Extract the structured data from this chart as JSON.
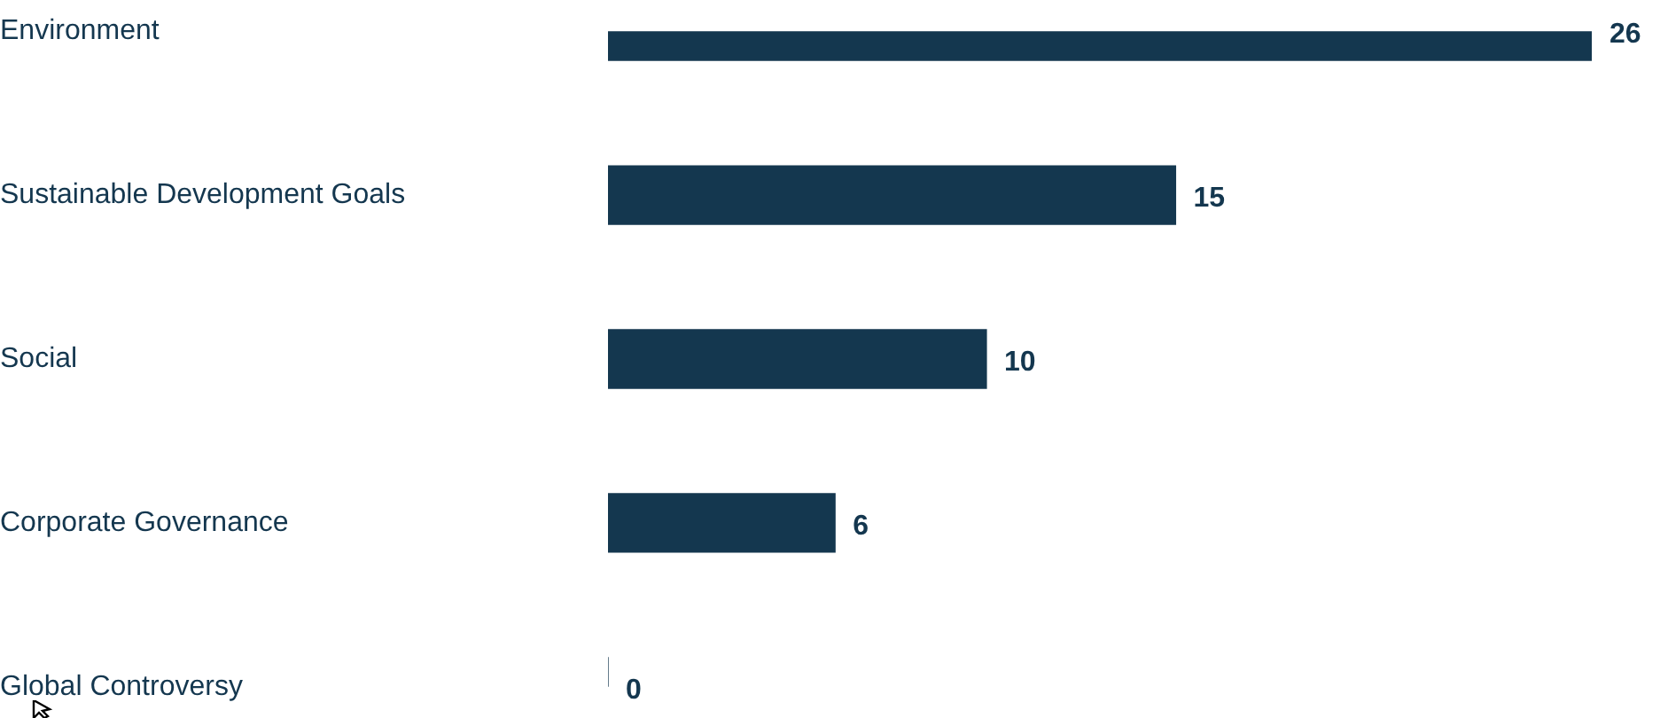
{
  "chart_data": {
    "type": "bar",
    "orientation": "horizontal",
    "categories": [
      "Environment",
      "Sustainable Development Goals",
      "Social",
      "Corporate Governance",
      "Global Controversy"
    ],
    "values": [
      26,
      15,
      10,
      6,
      0
    ],
    "color": "#14374f",
    "xlim": [
      0,
      26
    ],
    "tick_labels": "y",
    "data_labels": true,
    "grid": false,
    "legend": false
  }
}
